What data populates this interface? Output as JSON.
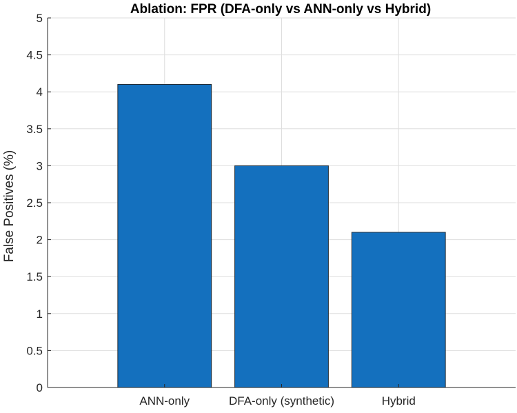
{
  "chart_data": {
    "type": "bar",
    "title": "Ablation: FPR (DFA-only vs ANN-only vs Hybrid)",
    "xlabel": "",
    "ylabel": "False Positives (%)",
    "categories": [
      "ANN-only",
      "DFA-only (synthetic)",
      "Hybrid"
    ],
    "values": [
      4.1,
      3.0,
      2.1
    ],
    "ylim": [
      0,
      5
    ],
    "yticks": [
      0,
      0.5,
      1,
      1.5,
      2,
      2.5,
      3,
      3.5,
      4,
      4.5,
      5
    ],
    "ytick_labels": [
      "0",
      "0.5",
      "1",
      "1.5",
      "2",
      "2.5",
      "3",
      "3.5",
      "4",
      "4.5",
      "5"
    ],
    "grid": true,
    "bar_color": "#1470BE",
    "bar_edge_color": "#1F2A33",
    "grid_color": "#DEDEDE",
    "axis_color": "#262626"
  }
}
